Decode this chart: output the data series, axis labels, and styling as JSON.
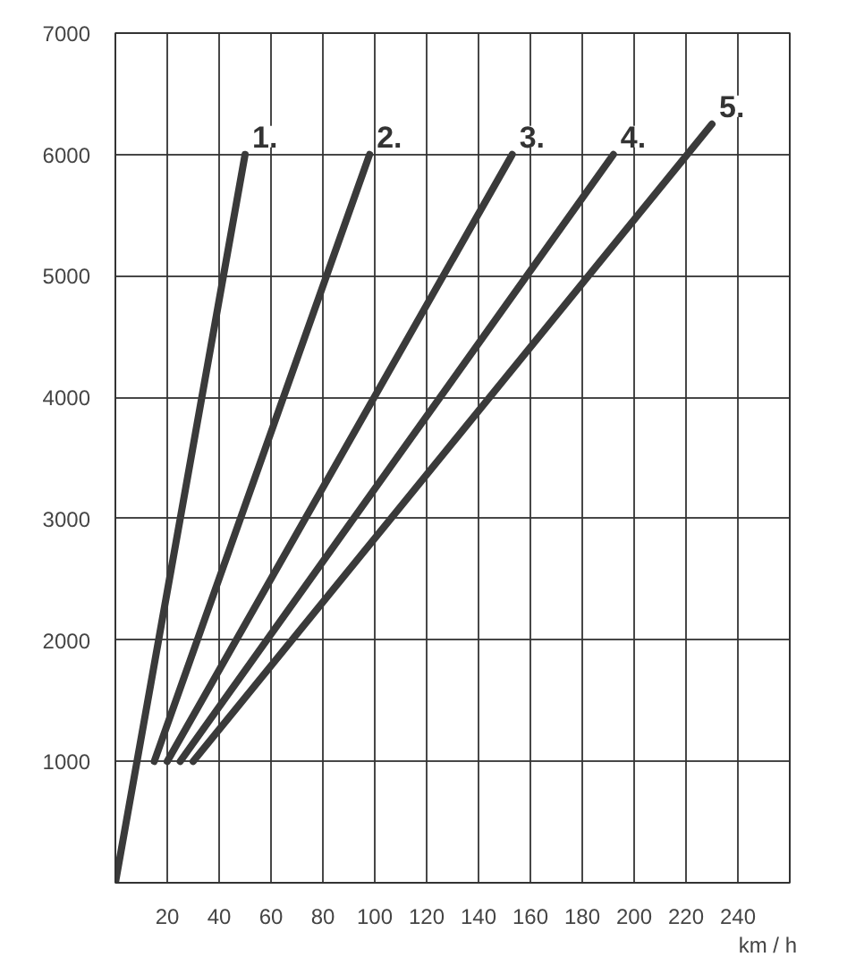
{
  "chart_data": {
    "type": "line",
    "xlabel": "km / h",
    "xlim": [
      0,
      260
    ],
    "ylim": [
      0,
      7000
    ],
    "xticks": [
      20,
      40,
      60,
      80,
      100,
      120,
      140,
      160,
      180,
      200,
      220,
      240
    ],
    "yticks": [
      1000,
      2000,
      3000,
      4000,
      5000,
      6000,
      7000
    ],
    "grid": true,
    "marker": "none",
    "line_style": "solid",
    "series": [
      {
        "name": "1.",
        "color": "#3a3a3a",
        "x": [
          0,
          50
        ],
        "values": [
          0,
          6000
        ]
      },
      {
        "name": "2.",
        "color": "#3a3a3a",
        "x": [
          15,
          98
        ],
        "values": [
          1000,
          6000
        ]
      },
      {
        "name": "3.",
        "color": "#3a3a3a",
        "x": [
          20,
          153
        ],
        "values": [
          1000,
          6000
        ]
      },
      {
        "name": "4.",
        "color": "#3a3a3a",
        "x": [
          25,
          192
        ],
        "values": [
          1000,
          6000
        ]
      },
      {
        "name": "5.",
        "color": "#3a3a3a",
        "x": [
          30,
          230
        ],
        "values": [
          1000,
          6250
        ]
      }
    ]
  }
}
